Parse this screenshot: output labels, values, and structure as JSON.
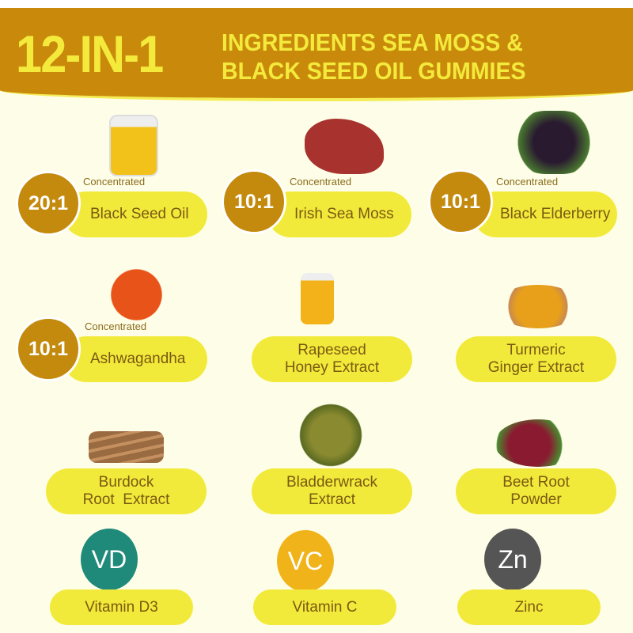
{
  "header": {
    "big": "12-IN-1",
    "line1": "INGREDIENTS SEA MOSS &",
    "line2": "BLACK SEED OIL GUMMIES"
  },
  "concentrated_label": "Concentrated",
  "ingredients": [
    {
      "ratio": "20:1",
      "name": "Black Seed Oil"
    },
    {
      "ratio": "10:1",
      "name": "Irish Sea Moss"
    },
    {
      "ratio": "10:1",
      "name": "Black Elderberry"
    },
    {
      "ratio": "10:1",
      "name": "Ashwagandha"
    },
    {
      "line1": "Rapeseed",
      "line2": "Honey Extract"
    },
    {
      "line1": "Turmeric",
      "line2": "Ginger Extract"
    },
    {
      "line1": "Burdock",
      "line2": "Root  Extract"
    },
    {
      "line1": "Bladderwrack",
      "line2": "Extract"
    },
    {
      "line1": "Beet Root",
      "line2": "Powder"
    },
    {
      "badge": "VD",
      "name": "Vitamin D3"
    },
    {
      "badge": "VC",
      "name": "Vitamin C"
    },
    {
      "badge": "Zn",
      "name": "Zinc"
    }
  ],
  "colors": {
    "header": "#c98a0b",
    "accent": "#f3ea3c",
    "pill": "#f2ea3a",
    "circle": "#c48a0d",
    "text": "#7a5a12",
    "background": "#fefee8"
  }
}
